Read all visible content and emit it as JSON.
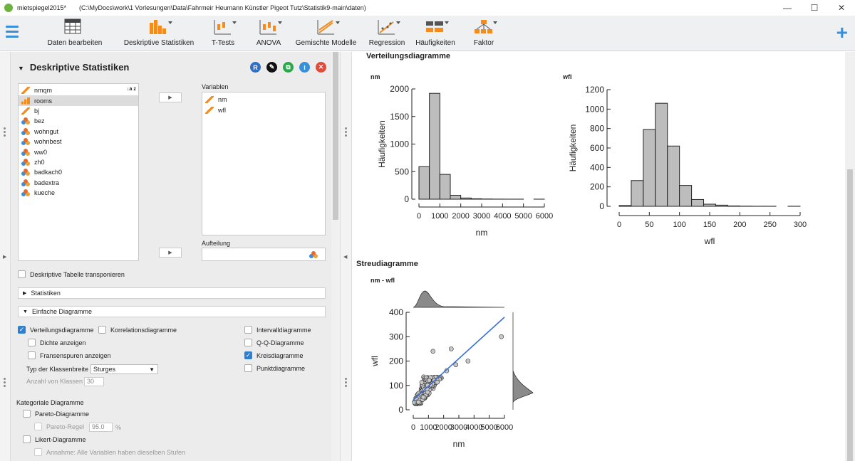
{
  "window": {
    "app_name": "mietspiegel2015*",
    "path": "(C:\\MyDocs\\work\\1 Vorlesungen\\Data\\Fahrmeir Heumann Künstler Pigeot Tutz\\Statistik9-main\\daten)",
    "minimize": "—",
    "maximize": "☐",
    "close": "✕"
  },
  "ribbon": {
    "items": [
      {
        "label": "Daten bearbeiten",
        "icon": "spreadsheet-icon"
      },
      {
        "label": "Deskriptive Statistiken",
        "icon": "bar-chart-icon"
      },
      {
        "label": "T-Tests",
        "icon": "t-test-icon"
      },
      {
        "label": "ANOVA",
        "icon": "anova-icon"
      },
      {
        "label": "Gemischte Modelle",
        "icon": "mixed-models-icon"
      },
      {
        "label": "Regression",
        "icon": "regression-icon"
      },
      {
        "label": "Häufigkeiten",
        "icon": "frequencies-icon"
      },
      {
        "label": "Faktor",
        "icon": "factor-icon"
      }
    ],
    "plus": "+"
  },
  "analysis": {
    "title": "Deskriptive Statistiken",
    "header_icons": [
      {
        "label": "R",
        "color": "#2f6fc6",
        "icon": "r-syntax-icon"
      },
      {
        "label": "✎",
        "color": "#111111",
        "icon": "edit-title-icon"
      },
      {
        "label": "⧉",
        "color": "#2aa84a",
        "icon": "duplicate-icon"
      },
      {
        "label": "i",
        "color": "#3a8fd8",
        "icon": "info-icon"
      },
      {
        "label": "✕",
        "color": "#e24b3b",
        "icon": "remove-analysis-icon"
      }
    ],
    "sort_icon": "↓a z",
    "variables": [
      {
        "name": "nmqm",
        "type": "scale"
      },
      {
        "name": "rooms",
        "type": "ordinal"
      },
      {
        "name": "bj",
        "type": "scale"
      },
      {
        "name": "bez",
        "type": "nominal"
      },
      {
        "name": "wohngut",
        "type": "nominal"
      },
      {
        "name": "wohnbest",
        "type": "nominal"
      },
      {
        "name": "ww0",
        "type": "nominal"
      },
      {
        "name": "zh0",
        "type": "nominal"
      },
      {
        "name": "badkach0",
        "type": "nominal"
      },
      {
        "name": "badextra",
        "type": "nominal"
      },
      {
        "name": "kueche",
        "type": "nominal"
      }
    ],
    "selected_variable": "rooms",
    "arrow": "▶",
    "variablen_label": "Variablen",
    "variablen": [
      "nm",
      "wfl"
    ],
    "aufteilung_label": "Aufteilung",
    "transpose_label": "Deskriptive Tabelle transponieren",
    "statistiken_label": "Statistiken",
    "einfache_label": "Einfache Diagramme",
    "options": {
      "verteilung": "Verteilungsdiagramme",
      "korrelation": "Korrelationsdiagramme",
      "dichte": "Dichte anzeigen",
      "fransen": "Fransenspuren anzeigen",
      "klassenbreite_label": "Typ der Klassenbreite",
      "klassenbreite_value": "Sturges",
      "anzahl_label": "Anzahl von Klassen",
      "anzahl_value": "30",
      "intervall": "Intervalldiagramme",
      "qq": "Q-Q-Diagramme",
      "kreis": "Kreisdiagramme",
      "punkt": "Punktdiagramme"
    },
    "kategorial_label": "Kategoriale Diagramme",
    "pareto": "Pareto-Diagramme",
    "pareto_regel": "Pareto-Regel",
    "pareto_value": "95.0",
    "pareto_unit": "%",
    "likert": "Likert-Diagramme",
    "annahme": "Annahme: Alle Variablen haben dieselben Stufen"
  },
  "results": {
    "verteilung_title": "Verteilungsdiagramme",
    "streu_title": "Streudiagramme",
    "streu_sub": "nm - wfl"
  },
  "chart_data": [
    {
      "type": "bar",
      "title": "nm",
      "xlabel": "nm",
      "ylabel": "Häufigkeiten",
      "bin_edges": [
        0,
        500,
        1000,
        1500,
        2000,
        2500,
        3000,
        3500,
        4000,
        4500,
        5000,
        5500,
        6000
      ],
      "values": [
        590,
        1920,
        450,
        70,
        22,
        8,
        4,
        2,
        1,
        1,
        0,
        1
      ],
      "xticks": [
        "0",
        "1000",
        "2000",
        "3000",
        "4000",
        "5000",
        "6000"
      ],
      "yticks": [
        "0",
        "500",
        "1000",
        "1500",
        "2000"
      ],
      "xlim": [
        0,
        6000
      ],
      "ylim": [
        0,
        2000
      ]
    },
    {
      "type": "bar",
      "title": "wfl",
      "xlabel": "wfl",
      "ylabel": "Häufigkeiten",
      "bin_edges": [
        0,
        20,
        40,
        60,
        80,
        100,
        120,
        140,
        160,
        180,
        200,
        220,
        240,
        260,
        280,
        300
      ],
      "values": [
        8,
        265,
        790,
        1060,
        620,
        215,
        70,
        22,
        12,
        4,
        2,
        1,
        1,
        0,
        1
      ],
      "xticks": [
        "0",
        "50",
        "100",
        "150",
        "200",
        "250",
        "300"
      ],
      "yticks": [
        "0",
        "200",
        "400",
        "600",
        "800",
        "1000",
        "1200"
      ],
      "xlim": [
        0,
        300
      ],
      "ylim": [
        0,
        1200
      ]
    },
    {
      "type": "scatter",
      "title": "nm - wfl",
      "xlabel": "nm",
      "ylabel": "wfl",
      "xticks": [
        "0",
        "1000",
        "2000",
        "3000",
        "4000",
        "5000",
        "6000"
      ],
      "yticks": [
        "0",
        "100",
        "200",
        "300",
        "400"
      ],
      "xlim": [
        0,
        6000
      ],
      "ylim": [
        0,
        400
      ],
      "regression": {
        "x": [
          0,
          6000
        ],
        "y": [
          40,
          380
        ]
      },
      "outliers": [
        {
          "x": 1300,
          "y": 240
        },
        {
          "x": 2500,
          "y": 250
        },
        {
          "x": 3600,
          "y": 200
        },
        {
          "x": 5800,
          "y": 300
        },
        {
          "x": 2200,
          "y": 160
        },
        {
          "x": 2800,
          "y": 185
        }
      ]
    }
  ]
}
